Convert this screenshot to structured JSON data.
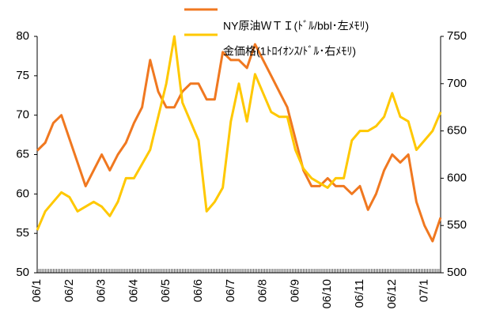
{
  "chart_data": {
    "type": "line",
    "legend": [
      {
        "label": "NY原油ＷＴＩ(ﾄﾞﾙ/bbl･左ﾒﾓﾘ)"
      },
      {
        "label": "金価格(1ﾄﾛｲｵﾝｽ/ﾄﾞﾙ･右ﾒﾓﾘ)"
      }
    ],
    "categories": [
      "06/1",
      null,
      null,
      null,
      "06/2",
      null,
      null,
      null,
      "06/3",
      null,
      null,
      null,
      "06/4",
      null,
      null,
      null,
      "06/5",
      null,
      null,
      null,
      "06/6",
      null,
      null,
      null,
      "06/7",
      null,
      null,
      null,
      "06/8",
      null,
      null,
      null,
      "06/9",
      null,
      null,
      null,
      "06/10",
      null,
      null,
      null,
      "06/11",
      null,
      null,
      null,
      "06/12",
      null,
      null,
      null,
      "07/1",
      null,
      null
    ],
    "series": [
      {
        "name": "NY原油ＷＴＩ(ﾄﾞﾙ/bbl･左ﾒﾓﾘ)",
        "color": "#f07820",
        "axis": "y",
        "values": [
          65.5,
          66.5,
          69,
          70,
          67,
          64,
          61,
          63,
          65,
          63,
          65,
          66.5,
          69,
          71,
          77,
          73,
          71,
          71,
          73,
          74,
          74,
          72,
          72,
          78,
          77,
          77,
          76,
          79,
          77,
          75,
          73,
          71,
          67,
          63,
          61,
          61,
          62,
          61,
          61,
          60,
          61,
          58,
          60,
          63,
          65,
          64,
          65,
          59,
          56,
          54,
          57
        ]
      },
      {
        "name": "金価格(1ﾄﾛｲｵﾝｽ/ﾄﾞﾙ･右ﾒﾓﾘ)",
        "color": "#ffc800",
        "axis": "y2",
        "values": [
          545,
          565,
          575,
          585,
          580,
          565,
          570,
          575,
          570,
          560,
          575,
          600,
          600,
          615,
          630,
          665,
          700,
          750,
          680,
          660,
          640,
          565,
          575,
          590,
          660,
          700,
          660,
          710,
          690,
          670,
          665,
          665,
          630,
          610,
          600,
          595,
          590,
          600,
          600,
          640,
          650,
          650,
          655,
          665,
          690,
          665,
          660,
          630,
          640,
          650,
          670
        ]
      }
    ],
    "ylim": [
      50,
      80
    ],
    "yticks": [
      50,
      55,
      60,
      65,
      70,
      75,
      80
    ],
    "y2lim": [
      500,
      750
    ],
    "y2ticks": [
      500,
      550,
      600,
      650,
      700,
      750
    ]
  }
}
